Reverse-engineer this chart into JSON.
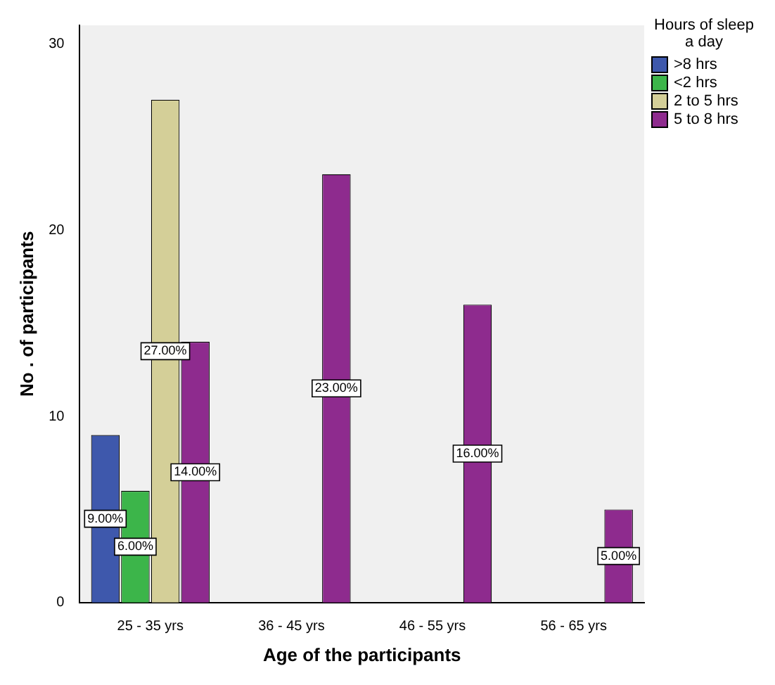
{
  "chart_data": {
    "type": "bar",
    "xlabel": "Age of the participants",
    "ylabel": "No . of participants",
    "legend_title": "Hours of sleep a day",
    "legend": "right",
    "grid": false,
    "categories": [
      "25 - 35 yrs",
      "36 - 45 yrs",
      "46 - 55 yrs",
      "56 - 65 yrs"
    ],
    "ylim": [
      0,
      31
    ],
    "yticks": [
      0,
      10,
      20,
      30
    ],
    "series": [
      {
        "name": ">8 hrs",
        "color": "#3e58ac",
        "values": [
          9,
          null,
          null,
          null
        ],
        "value_labels": [
          "9.00%",
          null,
          null,
          null
        ]
      },
      {
        "name": "<2 hrs",
        "color": "#3cb54a",
        "values": [
          6,
          null,
          null,
          null
        ],
        "value_labels": [
          "6.00%",
          null,
          null,
          null
        ]
      },
      {
        "name": "2 to 5 hrs",
        "color": "#d4cf98",
        "values": [
          27,
          null,
          null,
          null
        ],
        "value_labels": [
          "27.00%",
          null,
          null,
          null
        ]
      },
      {
        "name": "5 to 8 hrs",
        "color": "#8e2b8e",
        "values": [
          14,
          23,
          16,
          5
        ],
        "value_labels": [
          "14.00%",
          "23.00%",
          "16.00%",
          "5.00%"
        ]
      }
    ]
  }
}
